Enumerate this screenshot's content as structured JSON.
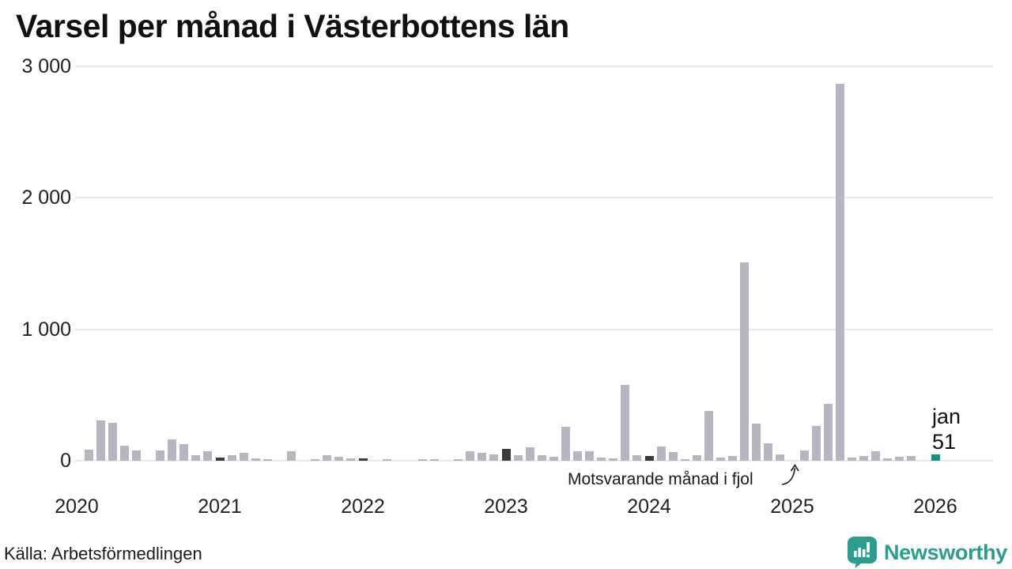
{
  "title": "Varsel per månad i Västerbottens län",
  "chart_data": {
    "type": "bar",
    "title": "Varsel per månad i Västerbottens län",
    "xlabel": "",
    "ylabel": "",
    "ylim": [
      0,
      3000
    ],
    "grid": "horizontal",
    "legend_position": "none",
    "yticks": [
      {
        "label": "3 000",
        "value": 3000
      },
      {
        "label": "2 000",
        "value": 2000
      },
      {
        "label": "1 000",
        "value": 1000
      },
      {
        "label": "0",
        "value": 0
      }
    ],
    "years": [
      {
        "year": "2020",
        "values": [
          0,
          85,
          305,
          290,
          115,
          80,
          0,
          80,
          160,
          125,
          45,
          75
        ]
      },
      {
        "year": "2021",
        "values": [
          25,
          45,
          60,
          20,
          10,
          0,
          70,
          0,
          15,
          45,
          30,
          20
        ]
      },
      {
        "year": "2022",
        "values": [
          20,
          0,
          15,
          0,
          0,
          15,
          15,
          0,
          15,
          70,
          60,
          50
        ]
      },
      {
        "year": "2023",
        "values": [
          90,
          40,
          100,
          40,
          30,
          260,
          70,
          70,
          25,
          20,
          580,
          40
        ]
      },
      {
        "year": "2024",
        "values": [
          35,
          110,
          65,
          10,
          45,
          380,
          25,
          35,
          1510,
          285,
          130,
          50
        ]
      },
      {
        "year": "2025",
        "values": [
          0,
          80,
          265,
          430,
          2865,
          25,
          35,
          75,
          20,
          30,
          35,
          0
        ]
      },
      {
        "year": "2026",
        "values": [
          51
        ]
      }
    ],
    "colors": {
      "default": "#b9b4c1",
      "january_previous_years": "#3b3b3b",
      "current_month": "#139186",
      "gridline": "#e8e8ed"
    },
    "current_point": {
      "month": "jan",
      "year": "2026",
      "value": 51
    }
  },
  "annotation": {
    "text": "Motsvarande månad i fjol"
  },
  "current_label": {
    "month": "jan",
    "value": "51"
  },
  "footer": {
    "source": "Källa: Arbetsförmedlingen"
  },
  "logo": {
    "brand": "Newsworthy",
    "icon": "newsworthy-bubble-chart-icon",
    "color": "#2a9d8f"
  }
}
